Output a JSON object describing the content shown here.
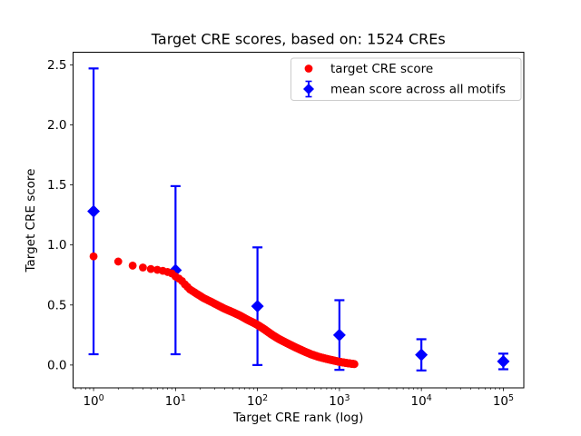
{
  "chart_data": {
    "type": "scatter",
    "title": "Target CRE scores, based on: 1524 CREs",
    "xlabel": "Target CRE rank (log)",
    "ylabel": "Target CRE score",
    "x_scale": "log",
    "grid": false,
    "xlim_log10": [
      -0.25,
      5.25
    ],
    "ylim": [
      -0.19,
      2.605
    ],
    "x_major_ticks": [
      1,
      10,
      100,
      1000,
      10000,
      100000
    ],
    "x_major_tick_exponents": [
      0,
      1,
      2,
      3,
      4,
      5
    ],
    "y_ticks": [
      0.0,
      0.5,
      1.0,
      1.5,
      2.0,
      2.5
    ],
    "colors": {
      "target_series": "#ff0000",
      "mean_series": "#0000ff",
      "legend_border": "#cccccc",
      "axes": "#000000"
    },
    "legend": {
      "position": "upper right"
    },
    "series": [
      {
        "name": "target CRE score",
        "color": "#ff0000",
        "marker": "circle",
        "n_points": 1524,
        "anchor_points": [
          [
            1,
            0.905
          ],
          [
            2,
            0.862
          ],
          [
            3,
            0.828
          ],
          [
            4,
            0.812
          ],
          [
            5,
            0.8
          ],
          [
            6,
            0.793
          ],
          [
            7,
            0.785
          ],
          [
            8,
            0.775
          ],
          [
            9,
            0.763
          ],
          [
            10,
            0.737
          ],
          [
            11,
            0.72
          ],
          [
            12,
            0.7
          ],
          [
            13,
            0.672
          ],
          [
            15,
            0.63
          ],
          [
            18,
            0.595
          ],
          [
            22,
            0.558
          ],
          [
            27,
            0.528
          ],
          [
            33,
            0.497
          ],
          [
            40,
            0.468
          ],
          [
            50,
            0.44
          ],
          [
            62,
            0.41
          ],
          [
            75,
            0.378
          ],
          [
            90,
            0.352
          ],
          [
            100,
            0.335
          ],
          [
            120,
            0.3
          ],
          [
            150,
            0.253
          ],
          [
            185,
            0.215
          ],
          [
            230,
            0.182
          ],
          [
            290,
            0.148
          ],
          [
            360,
            0.118
          ],
          [
            450,
            0.09
          ],
          [
            560,
            0.068
          ],
          [
            700,
            0.051
          ],
          [
            850,
            0.038
          ],
          [
            1000,
            0.027
          ],
          [
            1200,
            0.018
          ],
          [
            1380,
            0.012
          ],
          [
            1524,
            0.008
          ]
        ]
      },
      {
        "name": "mean score across all motifs",
        "color": "#0000ff",
        "marker": "diamond",
        "points": [
          {
            "x": 1,
            "mean": 1.28,
            "err": 1.19
          },
          {
            "x": 10,
            "mean": 0.79,
            "err": 0.7
          },
          {
            "x": 100,
            "mean": 0.49,
            "err": 0.49
          },
          {
            "x": 1000,
            "mean": 0.25,
            "err": 0.29
          },
          {
            "x": 10000,
            "mean": 0.085,
            "err": 0.13
          },
          {
            "x": 100000,
            "mean": 0.03,
            "err": 0.065
          }
        ]
      }
    ]
  }
}
